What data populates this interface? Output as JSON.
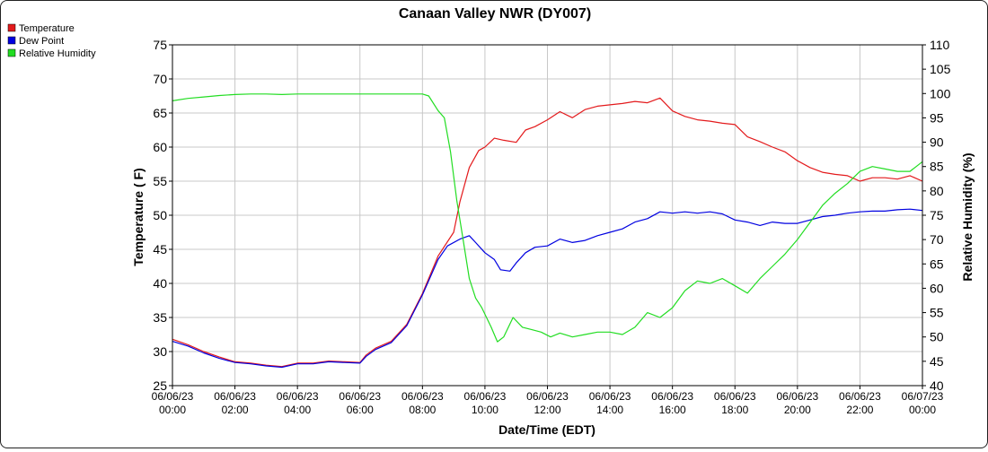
{
  "chart_data": {
    "type": "line",
    "title": "Canaan Valley NWR (DY007)",
    "xlabel": "Date/Time (EDT)",
    "ylabel": "Temperature ( F)",
    "y2label": "Relative Humidity (%)",
    "ylim": [
      25,
      75
    ],
    "y2lim": [
      40,
      110
    ],
    "yticks": [
      25,
      30,
      35,
      40,
      45,
      50,
      55,
      60,
      65,
      70,
      75
    ],
    "y2ticks": [
      40,
      45,
      50,
      55,
      60,
      65,
      70,
      75,
      80,
      85,
      90,
      95,
      100,
      105,
      110
    ],
    "xlim": [
      0,
      24
    ],
    "xticks": [
      {
        "x": 0,
        "date": "06/06/23",
        "time": "00:00"
      },
      {
        "x": 2,
        "date": "06/06/23",
        "time": "02:00"
      },
      {
        "x": 4,
        "date": "06/06/23",
        "time": "04:00"
      },
      {
        "x": 6,
        "date": "06/06/23",
        "time": "06:00"
      },
      {
        "x": 8,
        "date": "06/06/23",
        "time": "08:00"
      },
      {
        "x": 10,
        "date": "06/06/23",
        "time": "10:00"
      },
      {
        "x": 12,
        "date": "06/06/23",
        "time": "12:00"
      },
      {
        "x": 14,
        "date": "06/06/23",
        "time": "14:00"
      },
      {
        "x": 16,
        "date": "06/06/23",
        "time": "16:00"
      },
      {
        "x": 18,
        "date": "06/06/23",
        "time": "18:00"
      },
      {
        "x": 20,
        "date": "06/06/23",
        "time": "20:00"
      },
      {
        "x": 22,
        "date": "06/06/23",
        "time": "22:00"
      },
      {
        "x": 24,
        "date": "06/07/23",
        "time": "00:00"
      }
    ],
    "grid": true,
    "legend_position": "top-left",
    "series": [
      {
        "name": "Temperature",
        "color": "#e31a1c",
        "axis": "left",
        "x": [
          0,
          0.5,
          1,
          1.5,
          2,
          2.5,
          3,
          3.5,
          4,
          4.5,
          5,
          5.5,
          6,
          6.2,
          6.5,
          7,
          7.5,
          8,
          8.5,
          9,
          9.2,
          9.5,
          9.8,
          10,
          10.3,
          10.6,
          11,
          11.3,
          11.6,
          12,
          12.4,
          12.8,
          13.2,
          13.6,
          14,
          14.4,
          14.8,
          15.2,
          15.6,
          16,
          16.4,
          16.8,
          17.2,
          17.6,
          18,
          18.4,
          18.8,
          19.2,
          19.6,
          20,
          20.4,
          20.8,
          21.2,
          21.6,
          22,
          22.4,
          22.8,
          23.2,
          23.6,
          24
        ],
        "values": [
          31.8,
          31.0,
          30.0,
          29.2,
          28.5,
          28.3,
          28.0,
          27.8,
          28.3,
          28.3,
          28.6,
          28.5,
          28.4,
          29.5,
          30.5,
          31.5,
          34.0,
          38.5,
          44.0,
          47.5,
          52.0,
          57.0,
          59.5,
          60.0,
          61.3,
          61.0,
          60.7,
          62.5,
          63.0,
          64.0,
          65.2,
          64.3,
          65.5,
          66.0,
          66.2,
          66.4,
          66.7,
          66.5,
          67.2,
          65.3,
          64.5,
          64.0,
          63.8,
          63.5,
          63.3,
          61.5,
          60.8,
          60.0,
          59.3,
          58.0,
          57.0,
          56.3,
          56.0,
          55.8,
          55.0,
          55.5,
          55.5,
          55.3,
          55.8,
          55.0
        ]
      },
      {
        "name": "Dew Point",
        "color": "#0000e0",
        "axis": "left",
        "x": [
          0,
          0.5,
          1,
          1.5,
          2,
          2.5,
          3,
          3.5,
          4,
          4.5,
          5,
          5.5,
          6,
          6.2,
          6.5,
          7,
          7.5,
          8,
          8.5,
          8.8,
          9.2,
          9.5,
          9.7,
          10,
          10.3,
          10.5,
          10.8,
          11,
          11.3,
          11.6,
          12,
          12.4,
          12.8,
          13.2,
          13.6,
          14,
          14.4,
          14.8,
          15.2,
          15.6,
          16,
          16.4,
          16.8,
          17.2,
          17.6,
          18,
          18.4,
          18.8,
          19.2,
          19.6,
          20,
          20.4,
          20.8,
          21.2,
          21.6,
          22,
          22.4,
          22.8,
          23.2,
          23.6,
          24
        ],
        "values": [
          31.5,
          30.8,
          29.8,
          29.0,
          28.4,
          28.2,
          27.9,
          27.7,
          28.2,
          28.2,
          28.5,
          28.4,
          28.3,
          29.3,
          30.3,
          31.3,
          33.8,
          38.3,
          43.5,
          45.5,
          46.5,
          47.0,
          46.0,
          44.5,
          43.5,
          42.0,
          41.8,
          43.0,
          44.5,
          45.3,
          45.5,
          46.5,
          46.0,
          46.3,
          47.0,
          47.5,
          48.0,
          49.0,
          49.5,
          50.5,
          50.3,
          50.5,
          50.3,
          50.5,
          50.2,
          49.3,
          49.0,
          48.5,
          49.0,
          48.8,
          48.8,
          49.3,
          49.8,
          50.0,
          50.3,
          50.5,
          50.6,
          50.6,
          50.8,
          50.9,
          50.7
        ]
      },
      {
        "name": "Relative Humidity",
        "color": "#22dd22",
        "axis": "right",
        "x": [
          0,
          0.5,
          1,
          1.5,
          2,
          2.5,
          3,
          3.5,
          4,
          4.5,
          5,
          5.5,
          6,
          6.5,
          7,
          7.5,
          8,
          8.2,
          8.5,
          8.7,
          8.9,
          9.1,
          9.3,
          9.5,
          9.7,
          9.9,
          10.2,
          10.4,
          10.6,
          10.9,
          11.2,
          11.5,
          11.8,
          12.1,
          12.4,
          12.8,
          13.2,
          13.6,
          14,
          14.4,
          14.8,
          15.2,
          15.6,
          16,
          16.4,
          16.8,
          17.2,
          17.6,
          18,
          18.4,
          18.8,
          19.2,
          19.6,
          20,
          20.4,
          20.8,
          21.2,
          21.6,
          22,
          22.4,
          22.8,
          23.2,
          23.6,
          24
        ],
        "values": [
          98.5,
          99.0,
          99.3,
          99.6,
          99.8,
          99.9,
          99.9,
          99.8,
          99.9,
          99.9,
          99.9,
          99.9,
          99.9,
          99.9,
          99.9,
          99.9,
          99.9,
          99.5,
          96.5,
          95.0,
          88.0,
          78.0,
          70.0,
          62.0,
          58.0,
          56.0,
          52.0,
          49.0,
          50.0,
          54.0,
          52.0,
          51.5,
          51.0,
          50.0,
          50.8,
          50.0,
          50.5,
          51.0,
          51.0,
          50.5,
          52.0,
          55.0,
          54.0,
          56.0,
          59.5,
          61.5,
          61.0,
          62.0,
          60.5,
          59.0,
          62.0,
          64.5,
          67.0,
          70.0,
          73.5,
          77.0,
          79.5,
          81.5,
          84.0,
          85.0,
          84.5,
          84.0,
          84.0,
          86.0
        ]
      }
    ]
  }
}
